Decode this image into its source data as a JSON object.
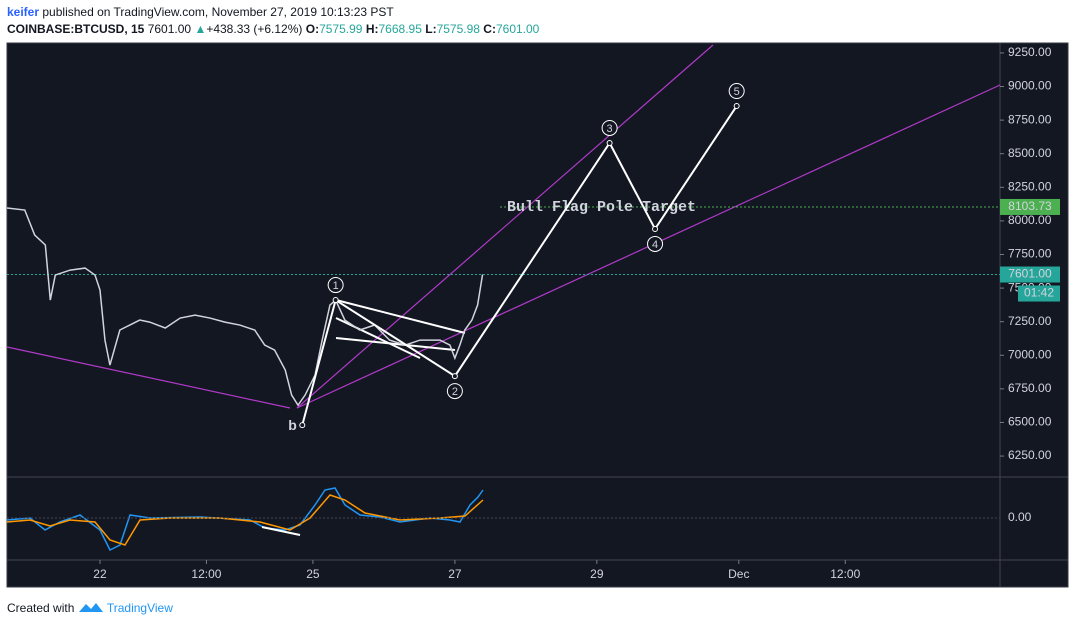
{
  "header": {
    "author": "keifer",
    "published": "published on TradingView.com, November 27, 2019 10:13:23 PST",
    "symbol": "COINBASE:BTCUSD, 15",
    "last": "7601.00",
    "change": "+438.33 (+6.12%)",
    "open_key": "O:",
    "open": "7575.99",
    "high_key": "H:",
    "high": "7668.95",
    "low_key": "L:",
    "low": "7575.98",
    "close_key": "C:",
    "close": "7601.00"
  },
  "chart_data": {
    "type": "line",
    "color": "#d1d4dc",
    "x": [
      -1.31,
      -1.06,
      -0.92,
      -0.77,
      -0.7,
      -0.63,
      -0.42,
      -0.21,
      -0.07,
      0,
      0.07,
      0.14,
      0.28,
      0.42,
      0.56,
      0.7,
      0.92,
      1.13,
      1.34,
      1.55,
      1.76,
      1.97,
      2.18,
      2.32,
      2.46,
      2.61,
      2.7,
      2.79,
      2.89,
      3.03,
      3.13,
      3.24,
      3.32,
      3.45,
      3.66,
      3.87,
      4.08,
      4.3,
      4.51,
      4.79,
      4.93,
      5.0,
      5.07,
      5.14,
      5.24,
      5.32,
      5.39
    ],
    "values": [
      8096,
      8081,
      7895,
      7821,
      7411,
      7597,
      7634,
      7649,
      7597,
      7486,
      7113,
      6927,
      7188,
      7225,
      7262,
      7247,
      7203,
      7277,
      7299,
      7277,
      7247,
      7225,
      7188,
      7076,
      7039,
      6890,
      6704,
      6629,
      6704,
      6853,
      7113,
      7374,
      7411,
      7262,
      7188,
      7225,
      7113,
      7076,
      7113,
      7113,
      7076,
      6979,
      7076,
      7188,
      7262,
      7374,
      7601
    ],
    "wave": {
      "x": [
        2.85,
        3.32,
        5.0,
        7.18,
        7.82,
        8.97
      ],
      "values": [
        6480,
        7411,
        6845,
        8580,
        7940,
        8855
      ],
      "labels": [
        "b",
        "1",
        "2",
        "3",
        "4",
        "5"
      ],
      "color": "#ffffff"
    },
    "levels": [
      {
        "value": 8103.73,
        "label": "8103.73",
        "color": "#4caf50",
        "text": "Bull Flag Pole Target"
      },
      {
        "value": 7601.0,
        "label": "7601.00",
        "color": "#26a69a",
        "countdown": "01:42"
      }
    ],
    "xlim": [
      -1.31,
      12.68
    ],
    "xticks": [
      {
        "value": 0,
        "label": "22"
      },
      {
        "value": 1.5,
        "label": "12:00"
      },
      {
        "value": 3,
        "label": "25"
      },
      {
        "value": 5,
        "label": "27"
      },
      {
        "value": 7,
        "label": "29"
      },
      {
        "value": 9,
        "label": "Dec"
      },
      {
        "value": 10.5,
        "label": "12:00"
      }
    ],
    "ylim": [
      6109,
      9324
    ],
    "yticks": [
      {
        "value": 6250,
        "label": "6250.00"
      },
      {
        "value": 6500,
        "label": "6500.00"
      },
      {
        "value": 6750,
        "label": "6750.00"
      },
      {
        "value": 7000,
        "label": "7000.00"
      },
      {
        "value": 7250,
        "label": "7250.00"
      },
      {
        "value": 7500,
        "label": "7500.00"
      },
      {
        "value": 7750,
        "label": "7750.00"
      },
      {
        "value": 8000,
        "label": "8000.00"
      },
      {
        "value": 8250,
        "label": "8250.00"
      },
      {
        "value": 8500,
        "label": "8500.00"
      },
      {
        "value": 8750,
        "label": "8750.00"
      },
      {
        "value": 9000,
        "label": "9000.00"
      },
      {
        "value": 9250,
        "label": "9250.00"
      }
    ],
    "indicator": {
      "yticks": [
        {
          "value": 0,
          "label": "0.00"
        }
      ]
    },
    "grid": false
  },
  "footer": {
    "created": "Created with",
    "brand": "TradingView"
  }
}
